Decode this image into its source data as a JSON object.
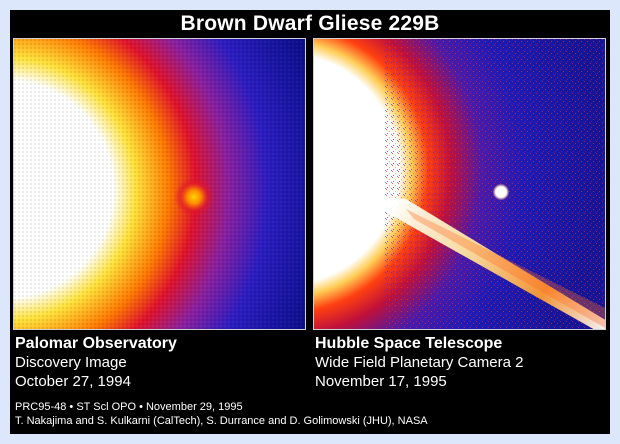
{
  "title": "Brown Dwarf Gliese 229B",
  "panels": [
    {
      "observatory": "Palomar Observatory",
      "line2": "Discovery Image",
      "date": "October 27, 1994"
    },
    {
      "observatory": "Hubble Space Telescope",
      "line2": "Wide Field Planetary Camera 2",
      "date": "November 17, 1995"
    }
  ],
  "credits": {
    "line1": "PRC95-48 • ST Scl OPO • November 29, 1995",
    "line2": "T. Nakajima and S. Kulkarni (CalTech), S. Durrance and D. Golimowski (JHU), NASA"
  },
  "colors": {
    "background": "#dde7fb",
    "frame": "#000000",
    "text": "#ffffff",
    "deep_blue": "#1a14a8"
  }
}
